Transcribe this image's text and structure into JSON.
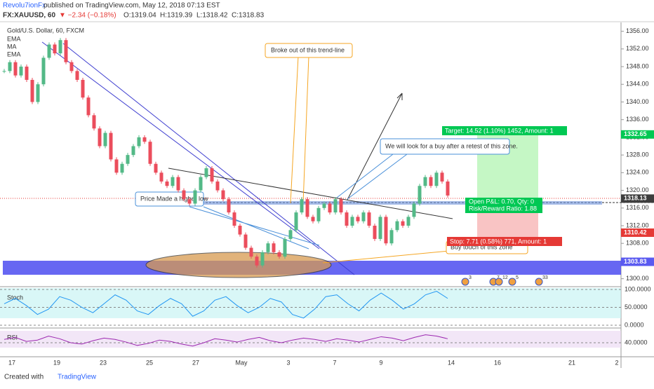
{
  "header": {
    "author": "Revolu7ionFx",
    "published": "published on TradingView.com, May 12, 2018 07:13 EST",
    "symbol": "FX:XAUUSD, 60",
    "change": "▼ −2.34 (−0.18%)",
    "open": "O:1319.04",
    "high": "H:1319.39",
    "low": "L:1318.42",
    "close": "C:1318.83"
  },
  "legend": [
    "Gold/U.S. Dollar, 60, FXCM",
    "EMA",
    "MA",
    "EMA"
  ],
  "annotations": {
    "breakout": "Broke out of this trend-line",
    "retest": "We will look for a buy after a retest of this zone.",
    "higher_low": "Price Made a higher low",
    "target": "Target: 14.52 (1.10%) 1452, Amount: 1",
    "pnl": "Open P&L: 0.70, Qty: 0",
    "ratio": "Risk/Reward Ratio: 1.88",
    "stop": "Stop: 7.71 (0.58%) 771, Amount: 1",
    "buy_zone": "Buy touch of this zone"
  },
  "events": [
    "3",
    "7",
    "12",
    "5",
    "33"
  ],
  "footer": {
    "created": "Created with",
    "brand": "TradingView"
  },
  "chart_data": {
    "type": "candlestick",
    "title": "Gold/U.S. Dollar, 60, FXCM",
    "close": [
      1347,
      1349,
      1346,
      1348,
      1345,
      1340,
      1344,
      1350,
      1353,
      1351,
      1354,
      1349,
      1347,
      1345,
      1341,
      1337,
      1334,
      1330,
      1333,
      1327,
      1324,
      1326,
      1328,
      1330,
      1332,
      1331,
      1326,
      1324,
      1322,
      1321,
      1323,
      1320,
      1318,
      1317,
      1320,
      1323,
      1325,
      1322,
      1320,
      1318,
      1315,
      1312,
      1310,
      1307,
      1305,
      1303,
      1306,
      1308,
      1306,
      1305,
      1309,
      1311,
      1315,
      1318,
      1314,
      1313,
      1316,
      1317,
      1315,
      1318,
      1315,
      1312,
      1314,
      1313,
      1315,
      1312,
      1309,
      1314,
      1308,
      1311,
      1313,
      1312,
      1314,
      1317,
      1321,
      1323,
      1321,
      1324,
      1322,
      1318.83
    ],
    "up_color": "#53b987",
    "down_color": "#eb4d5c",
    "ylim": [
      1298.2,
      1358
    ],
    "yticks": [
      {
        "value": 1300,
        "label": "1300.00"
      },
      {
        "value": 1304,
        "label": "1304.00"
      },
      {
        "value": 1308,
        "label": "1308.00"
      },
      {
        "value": 1312,
        "label": "1312.00"
      },
      {
        "value": 1316,
        "label": "1316.00"
      },
      {
        "value": 1320,
        "label": "1320.00"
      },
      {
        "value": 1324,
        "label": "1324.00"
      },
      {
        "value": 1328,
        "label": "1328.00"
      },
      {
        "value": 1332,
        "label": "1332.00"
      },
      {
        "value": 1336,
        "label": "1336.00"
      },
      {
        "value": 1340,
        "label": "1340.00"
      },
      {
        "value": 1344,
        "label": "1344.00"
      },
      {
        "value": 1348,
        "label": "1348.00"
      },
      {
        "value": 1352,
        "label": "1352.00"
      },
      {
        "value": 1356,
        "label": "1356.00"
      }
    ],
    "price_tags": [
      {
        "value": 1332.65,
        "label": "1332.65",
        "color": "#00c853"
      },
      {
        "value": 1318.13,
        "label": "1318.13",
        "color": "#3d3d3d"
      },
      {
        "value": 1310.42,
        "label": "1310.42",
        "color": "#e53935"
      },
      {
        "value": 1303.83,
        "label": "1303.83",
        "color": "#5a5af0"
      }
    ],
    "xtick_labels": [
      "17",
      "19",
      "23",
      "25",
      "27",
      "May",
      "3",
      "7",
      "9",
      "14",
      "16",
      "21",
      "2"
    ],
    "stoch": {
      "name": "Stoch",
      "color": "#2196f3",
      "ylim": [
        0,
        100
      ],
      "yticks": [
        {
          "value": 100,
          "label": "100.0000"
        },
        {
          "value": 50,
          "label": "50.0000"
        },
        {
          "value": 0,
          "label": "0.0000"
        }
      ],
      "values": [
        60,
        75,
        55,
        30,
        45,
        80,
        70,
        50,
        35,
        60,
        85,
        70,
        40,
        30,
        55,
        75,
        60,
        25,
        40,
        70,
        80,
        55,
        35,
        50,
        75,
        65,
        30,
        20,
        45,
        80,
        85,
        60,
        40,
        70,
        90,
        70,
        45,
        60,
        85,
        95,
        75
      ]
    },
    "rsi": {
      "name": "RSI",
      "color": "#9c27b0",
      "ylim": [
        20,
        60
      ],
      "yticks": [
        {
          "value": 40,
          "label": "40.0000"
        }
      ],
      "values": [
        45,
        48,
        42,
        44,
        50,
        46,
        40,
        38,
        43,
        47,
        45,
        41,
        36,
        39,
        44,
        42,
        38,
        35,
        40,
        46,
        44,
        41,
        45,
        48,
        43,
        40,
        44,
        47,
        45,
        42,
        46,
        44,
        41,
        45,
        49,
        47,
        43,
        48,
        52,
        50,
        46
      ]
    }
  }
}
